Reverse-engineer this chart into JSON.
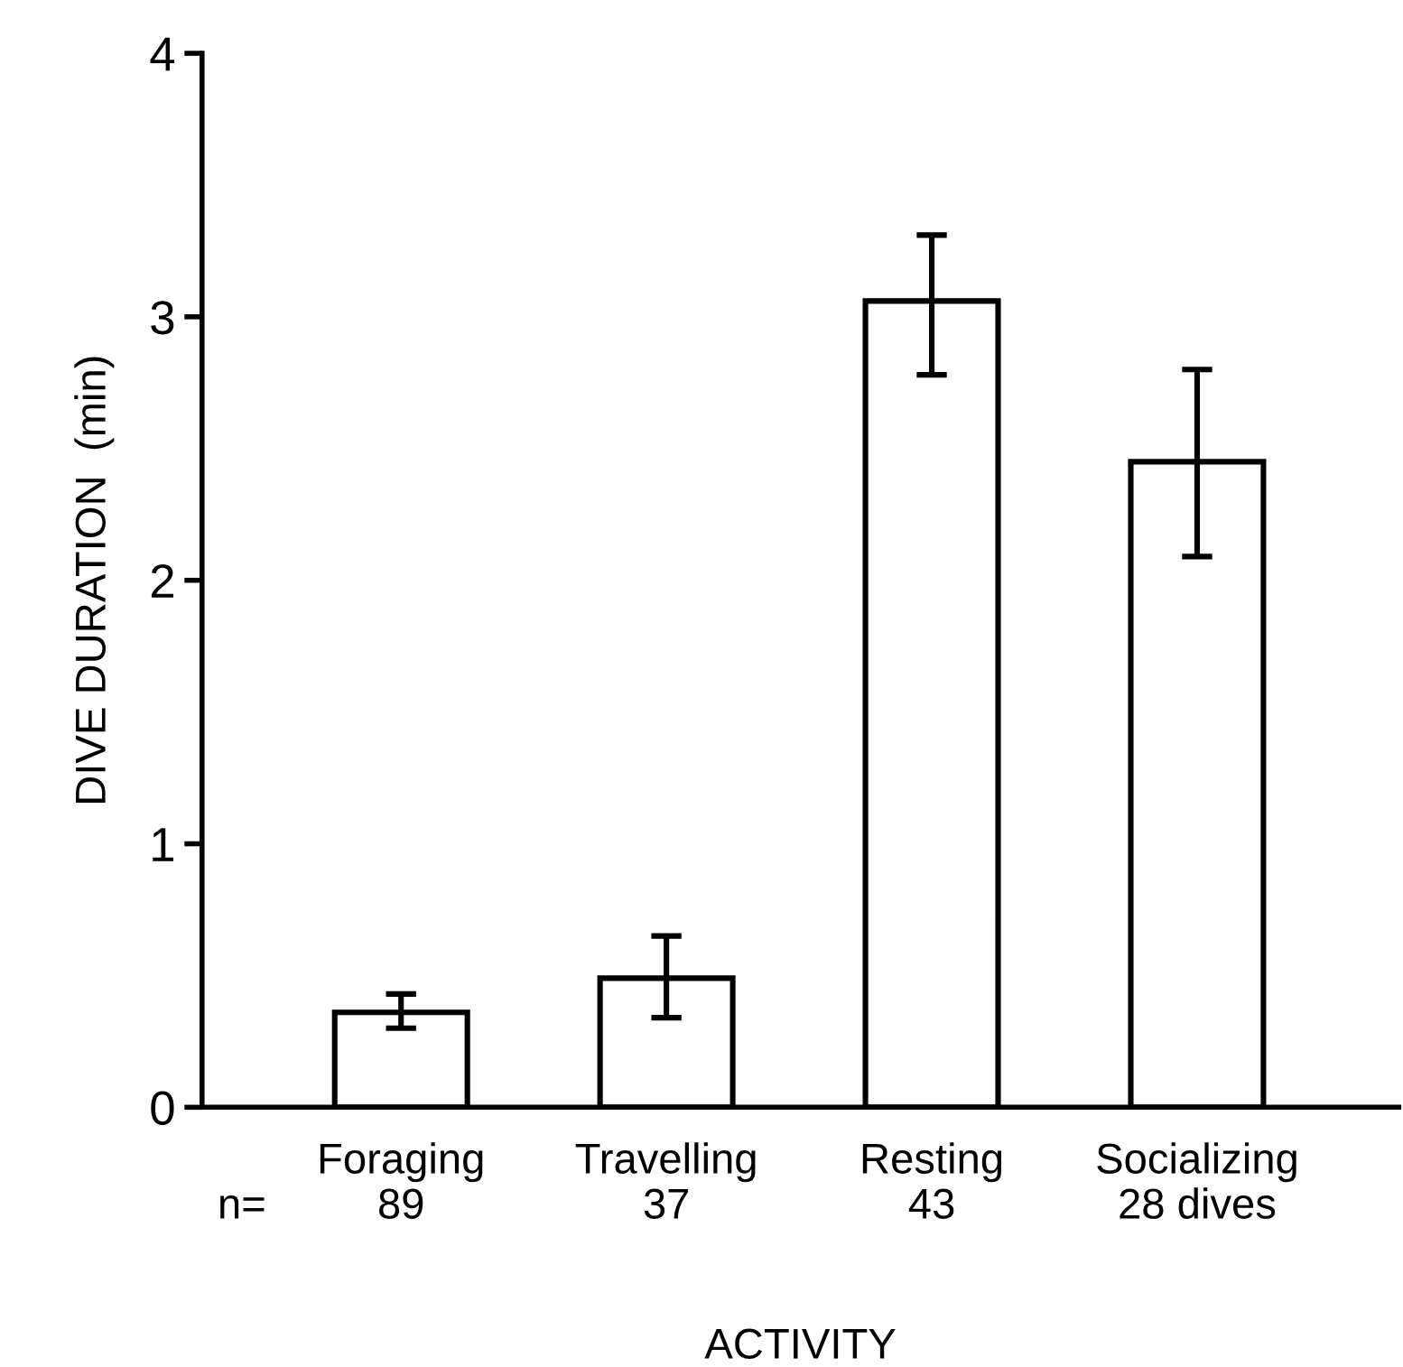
{
  "chart_data": {
    "type": "bar",
    "xlabel": "ACTIVITY",
    "ylabel": "DIVE DURATION  (min)",
    "categories": [
      "Foraging",
      "Travelling",
      "Resting",
      "Socializing"
    ],
    "series": [
      {
        "color": "#ffffff",
        "values": [
          0.36,
          0.49,
          3.06,
          2.45
        ],
        "errors": [
          [
            0.3,
            0.43
          ],
          [
            0.34,
            0.65
          ],
          [
            2.78,
            3.31
          ],
          [
            2.09,
            2.8
          ]
        ]
      }
    ],
    "ylim": [
      0,
      4
    ],
    "yticks": [
      0,
      1,
      2,
      3,
      4
    ],
    "grid": false,
    "legend": false,
    "annotations": [
      "n=",
      "89",
      "37",
      "43",
      "28 dives"
    ]
  }
}
